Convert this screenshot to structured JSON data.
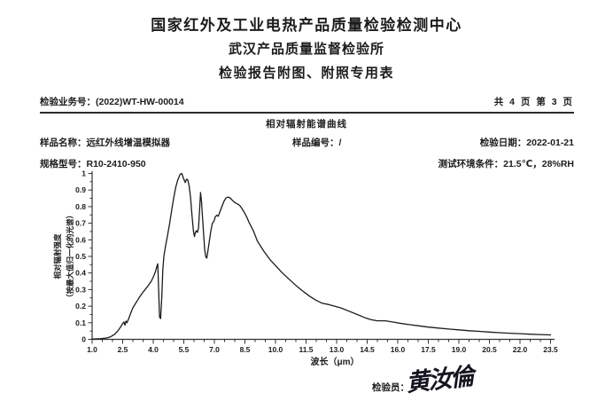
{
  "page": {
    "org_line1": "国家红外及工业电热产品质量检验检测中心",
    "org_line2": "武汉产品质量监督检验所",
    "form_title": "检验报告附图、附照专用表",
    "business_no_label": "检验业务号：",
    "business_no": "(2022)WT-HW-00014",
    "page_info": "共 4 页 第 3 页",
    "section_title": "相对辐射能谱曲线",
    "fields": {
      "sample_name_label": "样品名称：",
      "sample_name": "远红外线增温模拟器",
      "sample_no_label": "样品编号：",
      "sample_no": "/",
      "test_date_label": "检验日期：",
      "test_date": "2022-01-21",
      "model_label": "规格型号：",
      "model": "R10-2410-950",
      "env_label": "测试环境条件：",
      "env": "21.5℃，28%RH"
    },
    "inspector_label": "检验员：",
    "inspector_signature": "黄汝倫"
  },
  "chart_data": {
    "type": "line",
    "title": "相对辐射能谱曲线",
    "xlabel": "波长（μm）",
    "ylabel_line1": "相对辐射强度",
    "ylabel_line2": "（按最大值归一化的光谱）",
    "xlim": [
      1.0,
      23.5
    ],
    "ylim": [
      0,
      1
    ],
    "grid": false,
    "legend": "none",
    "line_color": "#1b1b1b",
    "axis_color": "#333333",
    "x_tick_values": [
      1.0,
      2.5,
      4.0,
      5.5,
      7.0,
      8.5,
      10.0,
      11.5,
      13.0,
      14.5,
      16.0,
      17.5,
      19.0,
      20.5,
      22.0,
      23.5
    ],
    "x_tick_labels": [
      "1.0",
      "2.5",
      "4.0",
      "5.5",
      "7.0",
      "8.5",
      "10.0",
      "11.5",
      "13.0",
      "14.5",
      "16.0",
      "17.5",
      "19.0",
      "20.5",
      "22.0",
      "23.5"
    ],
    "x_minor_step": 0.5,
    "y_tick_values": [
      0,
      0.1,
      0.2,
      0.3,
      0.4,
      0.5,
      0.6,
      0.7,
      0.8,
      0.9,
      1
    ],
    "y_tick_labels": [
      "0",
      "0.1",
      "0.2",
      "0.3",
      "0.4",
      "0.5",
      "0.6",
      "0.7",
      "0.8",
      "0.9",
      "1"
    ],
    "y_minor_step": 0.05,
    "points": [
      [
        1.0,
        0.002
      ],
      [
        1.4,
        0.004
      ],
      [
        1.7,
        0.008
      ],
      [
        1.9,
        0.015
      ],
      [
        2.1,
        0.03
      ],
      [
        2.25,
        0.05
      ],
      [
        2.4,
        0.075
      ],
      [
        2.5,
        0.095
      ],
      [
        2.56,
        0.105
      ],
      [
        2.61,
        0.085
      ],
      [
        2.66,
        0.11
      ],
      [
        2.71,
        0.1
      ],
      [
        2.78,
        0.12
      ],
      [
        2.9,
        0.16
      ],
      [
        3.0,
        0.19
      ],
      [
        3.15,
        0.22
      ],
      [
        3.3,
        0.25
      ],
      [
        3.5,
        0.285
      ],
      [
        3.7,
        0.315
      ],
      [
        3.9,
        0.35
      ],
      [
        4.0,
        0.375
      ],
      [
        4.1,
        0.405
      ],
      [
        4.18,
        0.44
      ],
      [
        4.22,
        0.455
      ],
      [
        4.27,
        0.28
      ],
      [
        4.31,
        0.135
      ],
      [
        4.36,
        0.125
      ],
      [
        4.42,
        0.26
      ],
      [
        4.47,
        0.42
      ],
      [
        4.52,
        0.5
      ],
      [
        4.6,
        0.56
      ],
      [
        4.7,
        0.625
      ],
      [
        4.8,
        0.695
      ],
      [
        4.9,
        0.775
      ],
      [
        5.0,
        0.85
      ],
      [
        5.1,
        0.915
      ],
      [
        5.2,
        0.96
      ],
      [
        5.32,
        0.995
      ],
      [
        5.4,
        1.0
      ],
      [
        5.5,
        0.965
      ],
      [
        5.57,
        0.945
      ],
      [
        5.63,
        0.965
      ],
      [
        5.69,
        0.962
      ],
      [
        5.76,
        0.925
      ],
      [
        5.83,
        0.855
      ],
      [
        5.9,
        0.75
      ],
      [
        5.97,
        0.655
      ],
      [
        6.02,
        0.62
      ],
      [
        6.07,
        0.645
      ],
      [
        6.12,
        0.655
      ],
      [
        6.17,
        0.645
      ],
      [
        6.22,
        0.67
      ],
      [
        6.27,
        0.77
      ],
      [
        6.32,
        0.885
      ],
      [
        6.37,
        0.83
      ],
      [
        6.44,
        0.695
      ],
      [
        6.52,
        0.545
      ],
      [
        6.58,
        0.497
      ],
      [
        6.63,
        0.49
      ],
      [
        6.72,
        0.565
      ],
      [
        6.82,
        0.65
      ],
      [
        6.9,
        0.7
      ],
      [
        6.98,
        0.712
      ],
      [
        7.05,
        0.74
      ],
      [
        7.12,
        0.748
      ],
      [
        7.19,
        0.742
      ],
      [
        7.27,
        0.768
      ],
      [
        7.37,
        0.8
      ],
      [
        7.47,
        0.832
      ],
      [
        7.57,
        0.852
      ],
      [
        7.67,
        0.858
      ],
      [
        7.77,
        0.853
      ],
      [
        7.87,
        0.84
      ],
      [
        7.97,
        0.828
      ],
      [
        8.07,
        0.82
      ],
      [
        8.17,
        0.814
      ],
      [
        8.27,
        0.804
      ],
      [
        8.42,
        0.775
      ],
      [
        8.57,
        0.742
      ],
      [
        8.72,
        0.7
      ],
      [
        8.92,
        0.652
      ],
      [
        9.12,
        0.59
      ],
      [
        9.42,
        0.532
      ],
      [
        9.72,
        0.482
      ],
      [
        10.0,
        0.445
      ],
      [
        10.3,
        0.405
      ],
      [
        10.6,
        0.37
      ],
      [
        11.0,
        0.325
      ],
      [
        11.4,
        0.285
      ],
      [
        11.7,
        0.258
      ],
      [
        12.0,
        0.235
      ],
      [
        12.3,
        0.217
      ],
      [
        12.6,
        0.21
      ],
      [
        12.9,
        0.2
      ],
      [
        13.2,
        0.19
      ],
      [
        13.6,
        0.17
      ],
      [
        14.0,
        0.15
      ],
      [
        14.4,
        0.13
      ],
      [
        14.7,
        0.118
      ],
      [
        15.0,
        0.112
      ],
      [
        15.4,
        0.112
      ],
      [
        15.8,
        0.104
      ],
      [
        16.2,
        0.095
      ],
      [
        16.6,
        0.088
      ],
      [
        17.0,
        0.082
      ],
      [
        17.5,
        0.074
      ],
      [
        18.0,
        0.068
      ],
      [
        18.5,
        0.062
      ],
      [
        19.0,
        0.057
      ],
      [
        19.5,
        0.052
      ],
      [
        20.0,
        0.048
      ],
      [
        20.5,
        0.044
      ],
      [
        21.0,
        0.04
      ],
      [
        21.5,
        0.037
      ],
      [
        22.0,
        0.034
      ],
      [
        22.5,
        0.031
      ],
      [
        23.0,
        0.029
      ],
      [
        23.5,
        0.027
      ]
    ]
  }
}
